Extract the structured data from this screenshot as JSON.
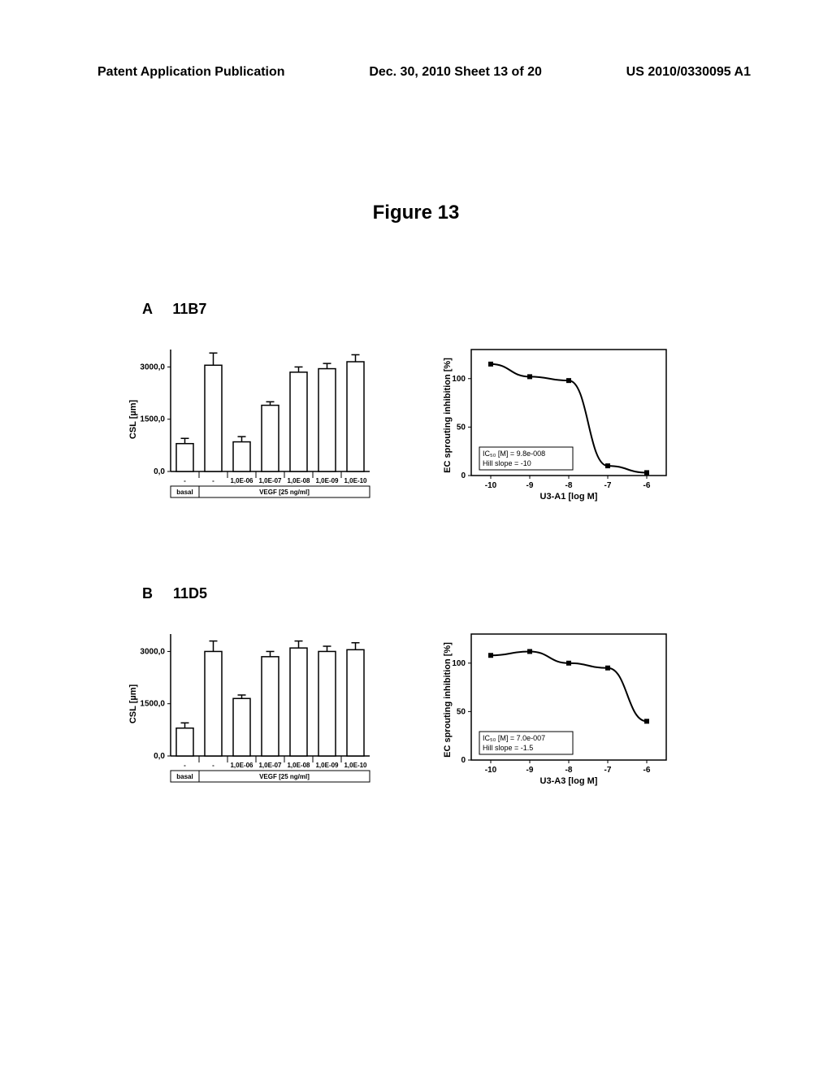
{
  "header": {
    "left": "Patent Application Publication",
    "center": "Dec. 30, 2010  Sheet 13 of 20",
    "right": "US 2010/0330095 A1"
  },
  "figure_title": "Figure 13",
  "panels": {
    "A": {
      "label_letter": "A",
      "label_name": "11B7",
      "bar_chart": {
        "type": "bar",
        "ylabel": "CSL [µm]",
        "ylim": [
          0,
          3500
        ],
        "yticks": [
          0,
          1500,
          3000
        ],
        "ytick_labels": [
          "0,0",
          "1500,0",
          "3000,0"
        ],
        "xlabel_bottom": "basal",
        "xlabel_group": "VEGF [25 ng/ml]",
        "categories": [
          "-",
          "-",
          "1,0E-06",
          "1,0E-07",
          "1,0E-08",
          "1,0E-09",
          "1,0E-10"
        ],
        "values": [
          800,
          3050,
          850,
          1900,
          2850,
          2950,
          3150
        ],
        "errors": [
          150,
          350,
          150,
          100,
          150,
          150,
          200
        ],
        "bar_color": "#ffffff",
        "bar_border": "#000000",
        "background": "#ffffff"
      },
      "curve_chart": {
        "type": "line",
        "ylabel": "EC sprouting inhibition [%]",
        "xlabel": "U3-A1 [log M]",
        "xlim": [
          -10.5,
          -5.5
        ],
        "ylim": [
          0,
          130
        ],
        "xticks": [
          -10,
          -9,
          -8,
          -7,
          -6
        ],
        "yticks": [
          0,
          50,
          100
        ],
        "points": [
          {
            "x": -10,
            "y": 115
          },
          {
            "x": -9,
            "y": 102
          },
          {
            "x": -8,
            "y": 98
          },
          {
            "x": -7,
            "y": 10
          },
          {
            "x": -6,
            "y": 3
          }
        ],
        "ic50_label": "IC₅₀ [M] =",
        "ic50_value": "9.8e-008",
        "hill_label": "Hill slope =",
        "hill_value": "-10",
        "line_color": "#000000",
        "line_width": 2,
        "marker_color": "#000000",
        "background": "#ffffff"
      }
    },
    "B": {
      "label_letter": "B",
      "label_name": "11D5",
      "bar_chart": {
        "type": "bar",
        "ylabel": "CSL [µm]",
        "ylim": [
          0,
          3500
        ],
        "yticks": [
          0,
          1500,
          3000
        ],
        "ytick_labels": [
          "0,0",
          "1500,0",
          "3000,0"
        ],
        "xlabel_bottom": "basal",
        "xlabel_group": "VEGF [25 ng/ml]",
        "categories": [
          "-",
          "-",
          "1,0E-06",
          "1,0E-07",
          "1,0E-08",
          "1,0E-09",
          "1,0E-10"
        ],
        "values": [
          800,
          3000,
          1650,
          2850,
          3100,
          3000,
          3050
        ],
        "errors": [
          150,
          300,
          100,
          150,
          200,
          150,
          200
        ],
        "bar_color": "#ffffff",
        "bar_border": "#000000",
        "background": "#ffffff"
      },
      "curve_chart": {
        "type": "line",
        "ylabel": "EC sprouting inhibition [%]",
        "xlabel": "U3-A3 [log M]",
        "xlim": [
          -10.5,
          -5.5
        ],
        "ylim": [
          0,
          130
        ],
        "xticks": [
          -10,
          -9,
          -8,
          -7,
          -6
        ],
        "yticks": [
          0,
          50,
          100
        ],
        "points": [
          {
            "x": -10,
            "y": 108
          },
          {
            "x": -9,
            "y": 112
          },
          {
            "x": -8,
            "y": 100
          },
          {
            "x": -7,
            "y": 95
          },
          {
            "x": -6,
            "y": 40
          }
        ],
        "ic50_label": "IC₅₀ [M] =",
        "ic50_value": "7.0e-007",
        "hill_label": "Hill slope =",
        "hill_value": "-1.5",
        "line_color": "#000000",
        "line_width": 2,
        "marker_color": "#000000",
        "background": "#ffffff"
      }
    }
  }
}
